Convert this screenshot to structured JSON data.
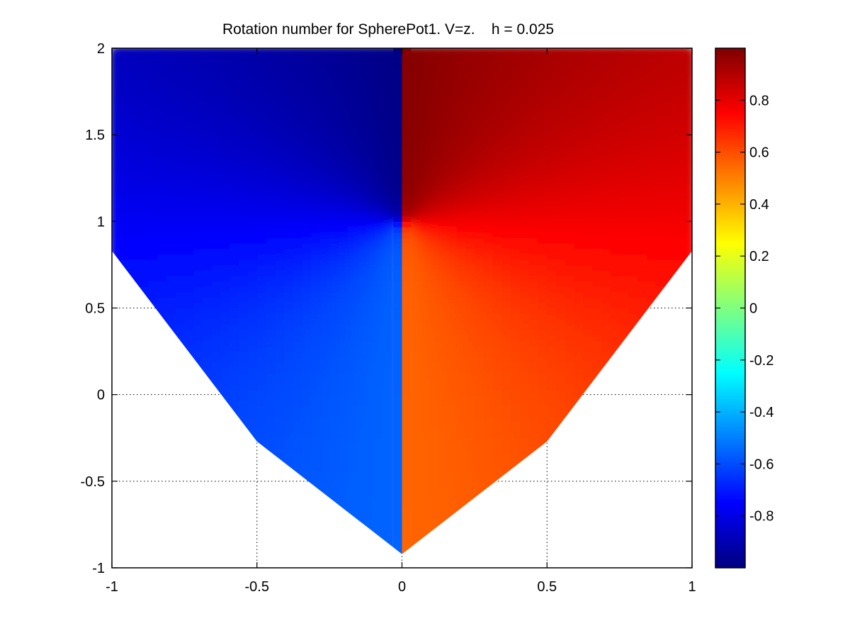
{
  "chart_data": {
    "type": "heatmap",
    "title": "Rotation number for SpherePot1. V=z.    h = 0.025",
    "xlabel": "",
    "ylabel": "",
    "xlim": [
      -1,
      1
    ],
    "ylim": [
      -1,
      2
    ],
    "x_ticks": [
      -1,
      -0.5,
      0,
      0.5,
      1
    ],
    "y_ticks": [
      -1,
      -0.5,
      0,
      0.5,
      1,
      1.5,
      2
    ],
    "x_tick_labels": [
      "-1",
      "-0.5",
      "0",
      "0.5",
      "1"
    ],
    "y_tick_labels": [
      "-1",
      "-0.5",
      "0",
      "0.5",
      "1",
      "1.5",
      "2"
    ],
    "grid": "dotted",
    "colormap": "jet",
    "color_limits": [
      -1,
      1
    ],
    "colorbar": {
      "placement": "right",
      "ticks": [
        -0.8,
        -0.6,
        -0.4,
        -0.2,
        0,
        0.2,
        0.4,
        0.6,
        0.8
      ],
      "tick_labels": [
        "-0.8",
        "-0.6",
        "-0.4",
        "-0.2",
        "0",
        "0.2",
        "0.4",
        "0.6",
        "0.8"
      ]
    },
    "domain_boundary": {
      "description_points": [
        [
          -1,
          0.83
        ],
        [
          -0.5,
          -0.27
        ],
        [
          0,
          -0.92
        ],
        [
          0.5,
          -0.27
        ],
        [
          1,
          0.83
        ]
      ],
      "top": 2
    },
    "center_point": [
      0,
      1
    ],
    "regions": [
      {
        "name": "left half (x<0)",
        "min": -1.0,
        "max": -0.5
      },
      {
        "name": "right half (x>0)",
        "min": 0.5,
        "max": 1.0
      }
    ]
  }
}
